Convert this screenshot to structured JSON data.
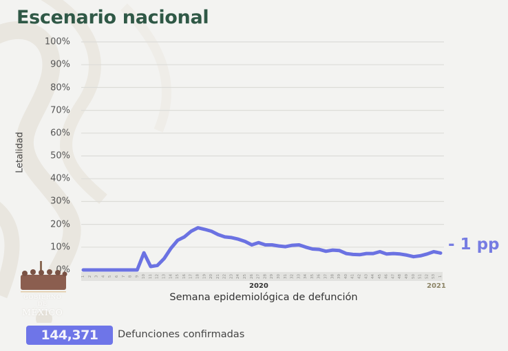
{
  "header": {
    "title": "Escenario nacional"
  },
  "logo": {
    "line1": "GOBIERNO DE",
    "line2": "MÉXICO"
  },
  "chart_data": {
    "type": "line",
    "title": "Escenario nacional",
    "xlabel": "Semana epidemiológica de defunción",
    "ylabel": "Letalidad",
    "ylim": [
      0,
      100
    ],
    "yticks": [
      "0%",
      "10%",
      "20%",
      "30%",
      "40%",
      "50%",
      "60%",
      "70%",
      "80%",
      "90%",
      "100%"
    ],
    "grid": true,
    "legend": "none",
    "year_labels": [
      "2020",
      "2021"
    ],
    "categories": [
      "1",
      "2",
      "3",
      "4",
      "5",
      "6",
      "7",
      "8",
      "9",
      "10",
      "11",
      "12",
      "13",
      "14",
      "15",
      "16",
      "17",
      "18",
      "19",
      "20",
      "21",
      "22",
      "23",
      "24",
      "25",
      "26",
      "27",
      "28",
      "29",
      "30",
      "31",
      "32",
      "33",
      "34",
      "35",
      "36",
      "37",
      "38",
      "39",
      "40",
      "41",
      "42",
      "43",
      "44",
      "45",
      "46",
      "47",
      "48",
      "49",
      "50",
      "51",
      "52",
      "53",
      "1"
    ],
    "series": [
      {
        "name": "Letalidad",
        "color": "#6b72e2",
        "values": [
          0,
          0,
          0,
          0,
          0,
          0,
          0,
          0,
          0,
          7.5,
          1.5,
          2,
          5,
          9.5,
          13,
          14.5,
          17,
          18.5,
          17.8,
          17,
          15.5,
          14.5,
          14.2,
          13.5,
          12.5,
          11,
          12,
          11,
          11,
          10.5,
          10.2,
          10.8,
          11,
          10,
          9.2,
          9,
          8.2,
          8.7,
          8.5,
          7.2,
          6.8,
          6.7,
          7.2,
          7.2,
          8,
          7,
          7.2,
          7,
          6.5,
          5.8,
          6.2,
          7,
          8,
          7.4
        ]
      }
    ],
    "annotation": "- 1 pp"
  },
  "footer": {
    "count": "144,371",
    "count_label": "Defunciones confirmadas"
  }
}
